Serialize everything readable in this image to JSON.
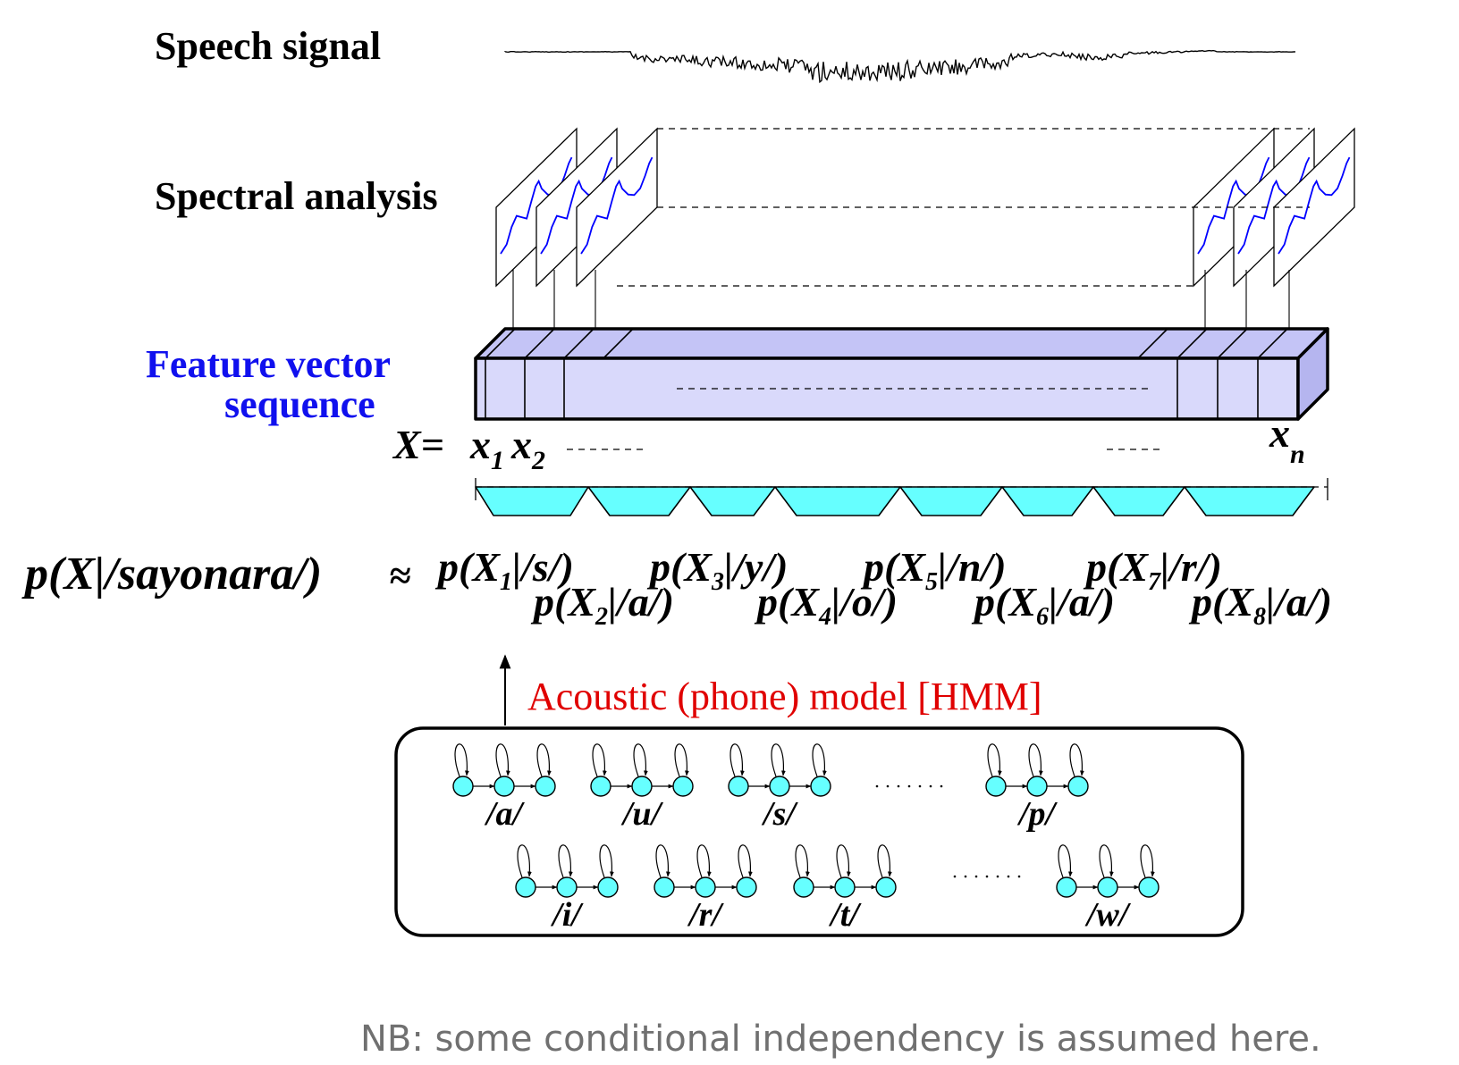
{
  "labels": {
    "speech_signal": "Speech signal",
    "spectral_analysis": "Spectral analysis",
    "feature_vector_line1": "Feature vector",
    "feature_vector_line2": "sequence",
    "x_eq": "X=",
    "x1": "x",
    "x1_sub": "1",
    "x2": "x",
    "x2_sub": "2",
    "xn": "x",
    "xn_sub": "n"
  },
  "equation": {
    "lhs": "p(X|/sayonara/)",
    "approx": "≈",
    "terms": [
      {
        "pre": "p(X",
        "sub": "1",
        "post": "|/s/)"
      },
      {
        "pre": "p(X",
        "sub": "2",
        "post": "|/a/)"
      },
      {
        "pre": "p(X",
        "sub": "3",
        "post": "|/y/)"
      },
      {
        "pre": "p(X",
        "sub": "4",
        "post": "|/o/)"
      },
      {
        "pre": "p(X",
        "sub": "5",
        "post": "|/n/)"
      },
      {
        "pre": "p(X",
        "sub": "6",
        "post": "|/a/)"
      },
      {
        "pre": "p(X",
        "sub": "7",
        "post": "|/r/)"
      },
      {
        "pre": "p(X",
        "sub": "8",
        "post": "|/a/)"
      }
    ]
  },
  "acoustic_model": {
    "title": "Acoustic (phone) model  [HMM]",
    "phones_row1": [
      "/a/",
      "/u/",
      "/s/",
      "/p/"
    ],
    "phones_row2": [
      "/i/",
      "/r/",
      "/t/",
      "/w/"
    ]
  },
  "note": "NB: some conditional independency is assumed here.",
  "colors": {
    "feature_vector_label": "#1010ee",
    "feature_bar_fill": "#d9d9fb",
    "segment_fill": "#66ffff",
    "hmm_state_fill": "#66ffff",
    "spectrum_curve": "#0000ff",
    "acoustic_model_title": "#e00000",
    "note_text": "#707070"
  }
}
